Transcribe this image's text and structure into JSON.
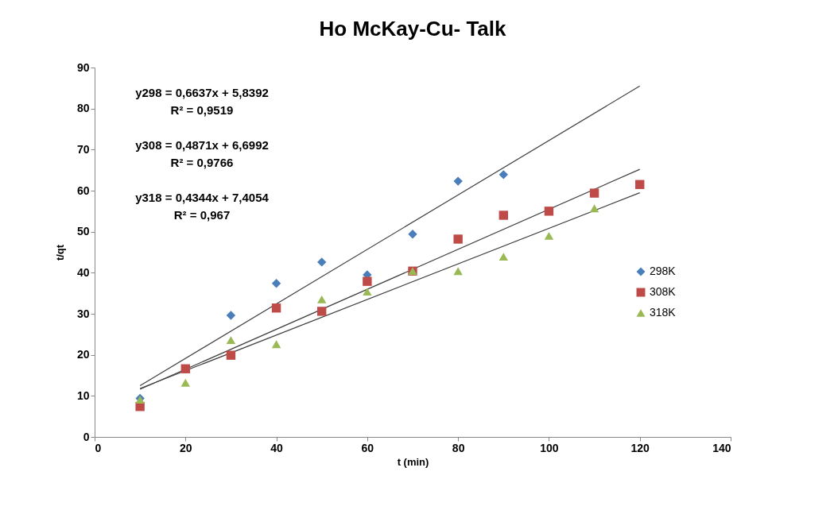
{
  "chart_data": {
    "type": "scatter",
    "title": "Ho McKay-Cu- Talk",
    "xlabel": "t (min)",
    "ylabel": "t/qt",
    "xlim": [
      0,
      140
    ],
    "xticks": [
      0,
      20,
      40,
      60,
      80,
      100,
      120,
      140
    ],
    "ylim": [
      0,
      90
    ],
    "yticks": [
      0,
      10,
      20,
      30,
      40,
      50,
      60,
      70,
      80,
      90
    ],
    "grid": false,
    "legend": "right",
    "annotations": [
      "y298 = 0,6637x + 5,8392",
      "R² = 0,9519",
      "y308 = 0,4871x + 6,6992",
      "R² = 0,9766",
      "y318 = 0,4344x + 7,4054",
      "R² = 0,967"
    ],
    "series": [
      {
        "name": "298K",
        "marker": "diamond",
        "color": "#4a7ebb",
        "x": [
          10,
          30,
          40,
          50,
          60,
          70,
          80,
          90
        ],
        "values": [
          9.4,
          29.6,
          37.4,
          42.6,
          39.5,
          49.4,
          62.3,
          63.9
        ]
      },
      {
        "name": "308K",
        "marker": "square",
        "color": "#be4b48",
        "x": [
          10,
          20,
          30,
          40,
          50,
          60,
          70,
          80,
          90,
          100,
          110,
          120
        ],
        "values": [
          7.4,
          16.6,
          19.9,
          31.4,
          30.6,
          37.9,
          40.4,
          48.2,
          54.0,
          55.0,
          59.4,
          61.5
        ]
      },
      {
        "name": "318K",
        "marker": "triangle",
        "color": "#98b954",
        "x": [
          10,
          20,
          30,
          40,
          50,
          60,
          70,
          80,
          90,
          100,
          110
        ],
        "values": [
          9.1,
          13.2,
          23.6,
          22.6,
          33.5,
          35.4,
          40.4,
          40.4,
          43.9,
          49.0,
          55.7
        ]
      },
      {
        "type": "line",
        "color": "#404040",
        "x": [
          10,
          120
        ],
        "values": [
          12.5,
          85.5
        ]
      },
      {
        "type": "line",
        "color": "#404040",
        "x": [
          10,
          120
        ],
        "values": [
          11.6,
          65.2
        ]
      },
      {
        "type": "line",
        "color": "#404040",
        "x": [
          10,
          120
        ],
        "values": [
          11.8,
          59.5
        ]
      }
    ]
  }
}
